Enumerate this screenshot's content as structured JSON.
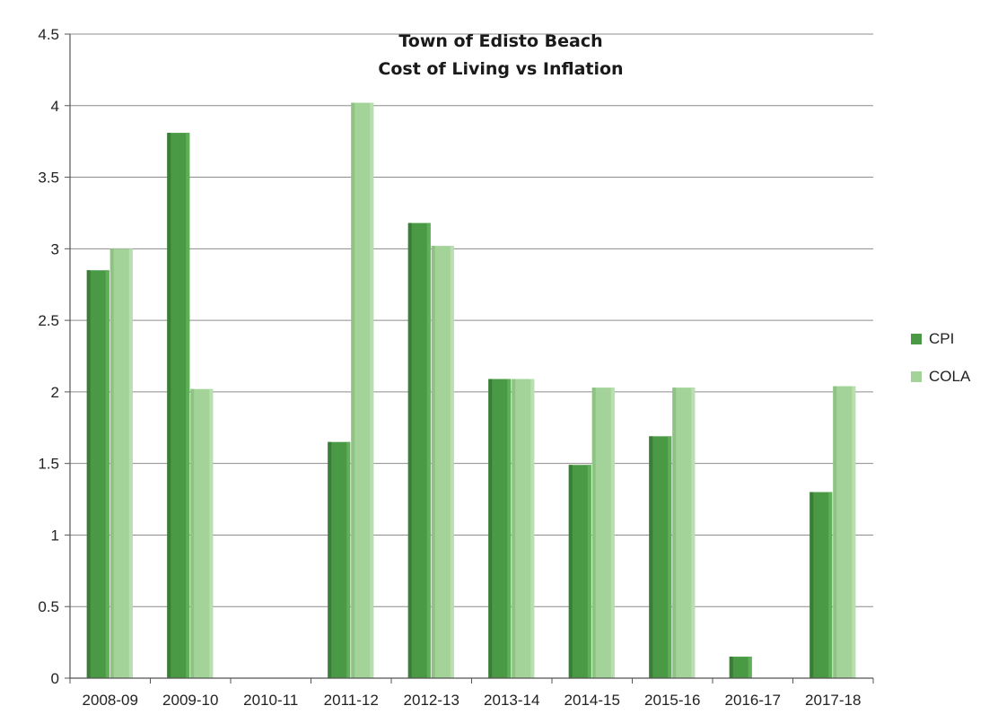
{
  "chart_data": {
    "type": "bar",
    "title": "Town of Edisto Beach",
    "subtitle": "Cost of Living vs Inflation",
    "xlabel": "",
    "ylabel": "",
    "ylim": [
      0,
      4.5
    ],
    "yticks": [
      "0",
      "0.5",
      "1",
      "1.5",
      "2",
      "2.5",
      "3",
      "3.5",
      "4",
      "4.5"
    ],
    "grid": true,
    "legend_position": "right",
    "categories": [
      "2008-09",
      "2009-10",
      "2010-11",
      "2011-12",
      "2012-13",
      "2013-14",
      "2014-15",
      "2015-16",
      "2016-17",
      "2017-18"
    ],
    "series": [
      {
        "name": "CPI",
        "color": "#4a9a45",
        "values": [
          2.85,
          3.81,
          0,
          1.65,
          3.18,
          2.09,
          1.49,
          1.69,
          0.15,
          1.3
        ]
      },
      {
        "name": "COLA",
        "color": "#a3d398",
        "values": [
          3.0,
          2.02,
          0,
          4.02,
          3.02,
          2.09,
          2.03,
          2.03,
          0,
          2.04
        ]
      }
    ]
  }
}
